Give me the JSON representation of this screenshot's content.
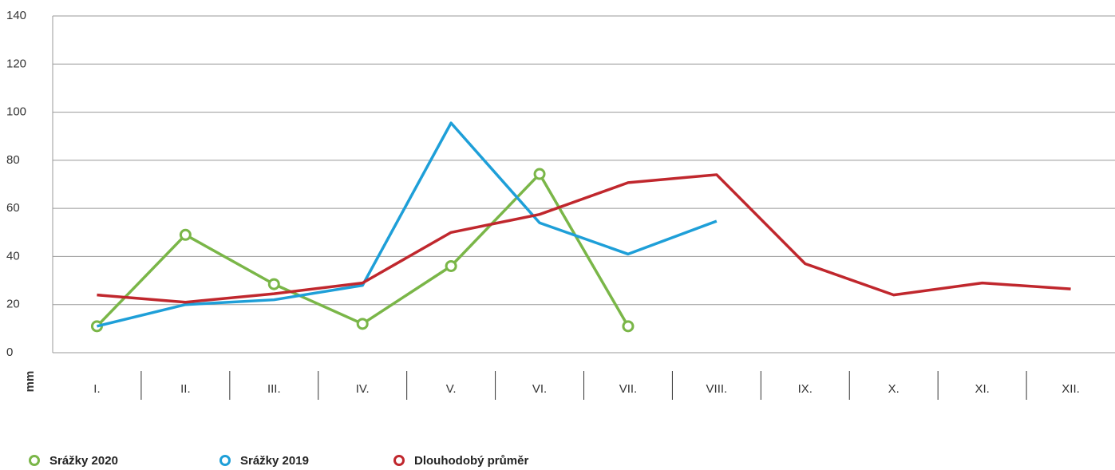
{
  "chart_data": {
    "type": "line",
    "y_label": "mm",
    "categories": [
      "I.",
      "II.",
      "III.",
      "IV.",
      "V.",
      "VI.",
      "VII.",
      "VIII.",
      "IX.",
      "X.",
      "XI.",
      "XII."
    ],
    "series": [
      {
        "name": "Srážky 2020",
        "color": "#7ab648",
        "markers": true,
        "values": [
          11,
          49,
          28.5,
          12,
          36,
          74.3,
          11,
          null,
          null,
          null,
          null,
          null
        ]
      },
      {
        "name": "Srážky 2019",
        "color": "#1e9fd8",
        "markers": false,
        "values": [
          11,
          20,
          22,
          28,
          95.5,
          54,
          41,
          54.7,
          null,
          null,
          null,
          null
        ]
      },
      {
        "name": "Dlouhodobý průměr",
        "color": "#c0272d",
        "markers": false,
        "values": [
          24,
          21,
          24.5,
          29,
          50,
          57.5,
          70.7,
          74,
          37,
          24,
          29,
          26.5
        ]
      }
    ],
    "ylim": [
      0,
      140
    ],
    "yticks": [
      0,
      20,
      40,
      60,
      80,
      100,
      120,
      140
    ],
    "grid": true
  }
}
